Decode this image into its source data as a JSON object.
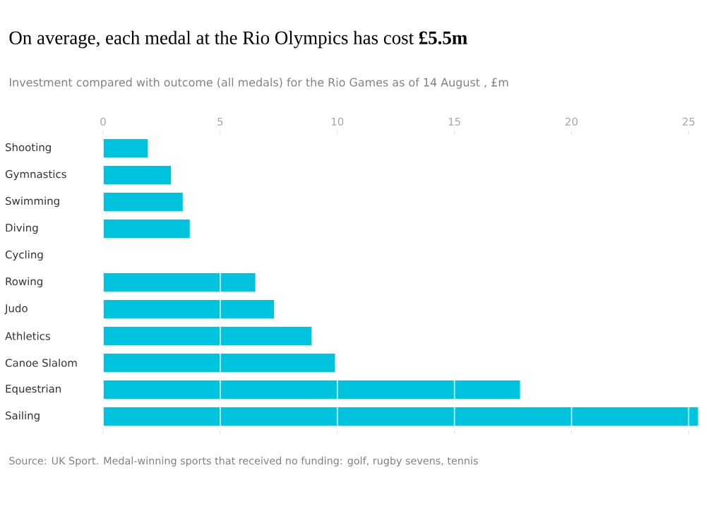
{
  "chart_data": {
    "type": "bar",
    "orientation": "horizontal",
    "title": "On average, each medal at the Rio Olympics has cost **£5.5m**",
    "subtitle": "Investment compared with outcome (all medals) for the Rio Games as of 14 August , £m",
    "categories": [
      "Shooting",
      "Gymnastics",
      "Swimming",
      "Diving",
      "Cycling",
      "Rowing",
      "Judo",
      "Athletics",
      "Canoe Slalom",
      "Equestrian",
      "Sailing"
    ],
    "values": [
      1.9,
      2.9,
      3.4,
      3.7,
      null,
      6.5,
      7.3,
      8.9,
      9.9,
      17.8,
      25.4
    ],
    "color": "#00c3de",
    "xlim": [
      0,
      25.5
    ],
    "xticks": [
      0,
      5,
      10,
      15,
      20,
      25
    ],
    "grid": "x",
    "annotations": [
      "Source: UK Sport. Medal-winning sports that received no funding: golf, rugby sevens, tennis"
    ]
  }
}
